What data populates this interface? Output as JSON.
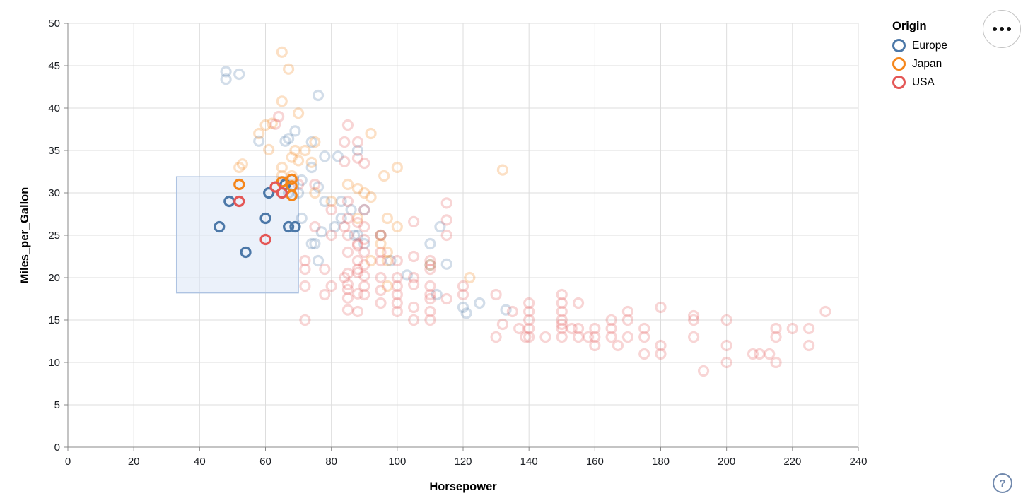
{
  "legend": {
    "title": "Origin",
    "items": [
      {
        "label": "Europe",
        "color": "#4c78a8"
      },
      {
        "label": "Japan",
        "color": "#f58518"
      },
      {
        "label": "USA",
        "color": "#e45756"
      }
    ]
  },
  "controls": {
    "menu_button": "more-options",
    "help_button_label": "?"
  },
  "chart_data": {
    "type": "scatter",
    "title": "",
    "xlabel": "Horsepower",
    "ylabel": "Miles_per_Gallon",
    "xlim": [
      0,
      240
    ],
    "ylim": [
      0,
      50
    ],
    "x_ticks": [
      0,
      20,
      40,
      60,
      80,
      100,
      120,
      140,
      160,
      180,
      200,
      220,
      240
    ],
    "y_ticks": [
      0,
      5,
      10,
      15,
      20,
      25,
      30,
      35,
      40,
      45,
      50
    ],
    "grid": true,
    "legend_position": "top-right",
    "point_shape": "open-circle",
    "unselected_opacity": 0.25,
    "brush_selection": {
      "x": [
        33,
        70
      ],
      "y": [
        18.2,
        31.9
      ],
      "fill": "#dbe6f5",
      "stroke": "#aec3e2"
    },
    "series": [
      {
        "name": "Europe",
        "color": "#4c78a8",
        "selected_points": [
          [
            46,
            26
          ],
          [
            49,
            29
          ],
          [
            54,
            23
          ],
          [
            60,
            27
          ],
          [
            61,
            30
          ],
          [
            66,
            31
          ],
          [
            67,
            26
          ],
          [
            69,
            26
          ]
        ],
        "points": [
          [
            48,
            44.3
          ],
          [
            48,
            43.4
          ],
          [
            52,
            44
          ],
          [
            76,
            41.5
          ],
          [
            69,
            37.3
          ],
          [
            67,
            36.4
          ],
          [
            58,
            36.1
          ],
          [
            66,
            36.1
          ],
          [
            74,
            36
          ],
          [
            88,
            35
          ],
          [
            78,
            34.3
          ],
          [
            82,
            34.3
          ],
          [
            74,
            33
          ],
          [
            71,
            31.5
          ],
          [
            76,
            30.7
          ],
          [
            70,
            30
          ],
          [
            67,
            30
          ],
          [
            78,
            29
          ],
          [
            83,
            29
          ],
          [
            86,
            28
          ],
          [
            90,
            28
          ],
          [
            71,
            27
          ],
          [
            83,
            27
          ],
          [
            87,
            25
          ],
          [
            88,
            25
          ],
          [
            90,
            24
          ],
          [
            95,
            25
          ],
          [
            110,
            24
          ],
          [
            98,
            22
          ],
          [
            75,
            24
          ],
          [
            81,
            26
          ],
          [
            77,
            25.4
          ],
          [
            113,
            26
          ],
          [
            112,
            18
          ],
          [
            110,
            21.5
          ],
          [
            115,
            21.6
          ],
          [
            103,
            20.3
          ],
          [
            120,
            16.5
          ],
          [
            125,
            17
          ],
          [
            133,
            16.2
          ],
          [
            121,
            15.8
          ],
          [
            74,
            24
          ],
          [
            76,
            22
          ]
        ]
      },
      {
        "name": "Japan",
        "color": "#f58518",
        "selected_points": [
          [
            52,
            31
          ],
          [
            65,
            31.3
          ],
          [
            68,
            31.6
          ],
          [
            68,
            30.8
          ],
          [
            68,
            29.7
          ]
        ],
        "points": [
          [
            65,
            46.6
          ],
          [
            67,
            44.6
          ],
          [
            65,
            40.8
          ],
          [
            70,
            39.4
          ],
          [
            60,
            38
          ],
          [
            62,
            38.2
          ],
          [
            58,
            37
          ],
          [
            69,
            35
          ],
          [
            72,
            35
          ],
          [
            75,
            36
          ],
          [
            92,
            37
          ],
          [
            61,
            35.1
          ],
          [
            68,
            34.2
          ],
          [
            70,
            33.8
          ],
          [
            74,
            33.6
          ],
          [
            52,
            33
          ],
          [
            53,
            33.4
          ],
          [
            65,
            33
          ],
          [
            96,
            32
          ],
          [
            100,
            33
          ],
          [
            90,
            30
          ],
          [
            75,
            30
          ],
          [
            68,
            32
          ],
          [
            65,
            32
          ],
          [
            80,
            29
          ],
          [
            85,
            31
          ],
          [
            88,
            30.5
          ],
          [
            92,
            29.5
          ],
          [
            97,
            27
          ],
          [
            95,
            24
          ],
          [
            88,
            27
          ],
          [
            95,
            25
          ],
          [
            97,
            23
          ],
          [
            92,
            22
          ],
          [
            97,
            22
          ],
          [
            97,
            19
          ],
          [
            110,
            21.5
          ],
          [
            122,
            20
          ],
          [
            132,
            32.7
          ],
          [
            100,
            26
          ]
        ]
      },
      {
        "name": "USA",
        "color": "#e45756",
        "selected_points": [
          [
            52,
            29
          ],
          [
            60,
            24.5
          ],
          [
            63,
            30.7
          ],
          [
            65,
            30
          ]
        ],
        "points": [
          [
            64,
            39
          ],
          [
            63,
            38.1
          ],
          [
            85,
            38
          ],
          [
            84,
            36
          ],
          [
            88,
            36
          ],
          [
            88,
            34.1
          ],
          [
            90,
            33.5
          ],
          [
            84,
            33.7
          ],
          [
            70,
            31
          ],
          [
            75,
            31
          ],
          [
            80,
            28
          ],
          [
            80,
            25
          ],
          [
            80,
            19
          ],
          [
            72,
            22
          ],
          [
            72,
            21
          ],
          [
            72,
            19
          ],
          [
            72,
            15
          ],
          [
            75,
            26
          ],
          [
            78,
            18
          ],
          [
            78,
            21
          ],
          [
            84,
            26
          ],
          [
            84,
            20
          ],
          [
            85,
            29
          ],
          [
            85,
            27
          ],
          [
            85,
            25
          ],
          [
            85,
            23
          ],
          [
            85,
            20.5
          ],
          [
            85,
            19.2
          ],
          [
            85,
            18.6
          ],
          [
            85,
            17.6
          ],
          [
            85,
            16.2
          ],
          [
            88,
            26.5
          ],
          [
            88,
            24
          ],
          [
            88,
            23.8
          ],
          [
            88,
            22
          ],
          [
            88,
            21
          ],
          [
            88,
            20.6
          ],
          [
            88,
            18.1
          ],
          [
            88,
            16
          ],
          [
            90,
            28
          ],
          [
            90,
            26
          ],
          [
            90,
            24.5
          ],
          [
            90,
            23
          ],
          [
            90,
            21.5
          ],
          [
            90,
            20.2
          ],
          [
            90,
            19
          ],
          [
            90,
            18
          ],
          [
            95,
            25
          ],
          [
            95,
            23
          ],
          [
            95,
            22
          ],
          [
            95,
            20
          ],
          [
            95,
            18.5
          ],
          [
            95,
            17
          ],
          [
            100,
            22
          ],
          [
            100,
            20
          ],
          [
            100,
            19
          ],
          [
            100,
            18
          ],
          [
            100,
            17
          ],
          [
            100,
            16
          ],
          [
            105,
            26.6
          ],
          [
            105,
            22.5
          ],
          [
            105,
            20
          ],
          [
            105,
            19.2
          ],
          [
            105,
            16.5
          ],
          [
            105,
            15
          ],
          [
            110,
            22
          ],
          [
            110,
            21
          ],
          [
            110,
            19
          ],
          [
            110,
            18
          ],
          [
            110,
            17.5
          ],
          [
            110,
            16
          ],
          [
            110,
            15
          ],
          [
            115,
            28.8
          ],
          [
            115,
            26.8
          ],
          [
            115,
            25
          ],
          [
            115,
            17.5
          ],
          [
            120,
            19
          ],
          [
            120,
            18
          ],
          [
            130,
            18
          ],
          [
            130,
            13
          ],
          [
            132,
            14.5
          ],
          [
            135,
            16
          ],
          [
            137,
            14
          ],
          [
            139,
            13
          ],
          [
            140,
            17
          ],
          [
            140,
            16
          ],
          [
            140,
            15
          ],
          [
            140,
            14
          ],
          [
            140,
            13
          ],
          [
            145,
            13
          ],
          [
            150,
            18
          ],
          [
            150,
            17
          ],
          [
            150,
            16
          ],
          [
            150,
            15
          ],
          [
            150,
            14.5
          ],
          [
            150,
            14
          ],
          [
            150,
            13
          ],
          [
            153,
            14
          ],
          [
            155,
            17
          ],
          [
            155,
            14
          ],
          [
            155,
            13
          ],
          [
            158,
            13
          ],
          [
            160,
            14
          ],
          [
            160,
            13
          ],
          [
            160,
            12
          ],
          [
            165,
            15
          ],
          [
            165,
            14
          ],
          [
            165,
            13
          ],
          [
            167,
            12
          ],
          [
            170,
            16
          ],
          [
            170,
            15
          ],
          [
            170,
            13
          ],
          [
            175,
            14
          ],
          [
            175,
            13
          ],
          [
            175,
            11
          ],
          [
            180,
            16.5
          ],
          [
            180,
            12
          ],
          [
            180,
            11
          ],
          [
            190,
            15.5
          ],
          [
            190,
            15
          ],
          [
            190,
            13
          ],
          [
            193,
            9
          ],
          [
            200,
            15
          ],
          [
            200,
            12
          ],
          [
            200,
            10
          ],
          [
            208,
            11
          ],
          [
            210,
            11
          ],
          [
            213,
            11
          ],
          [
            215,
            14
          ],
          [
            215,
            13
          ],
          [
            215,
            10
          ],
          [
            220,
            14
          ],
          [
            225,
            14
          ],
          [
            225,
            12
          ],
          [
            230,
            16
          ]
        ]
      }
    ]
  }
}
